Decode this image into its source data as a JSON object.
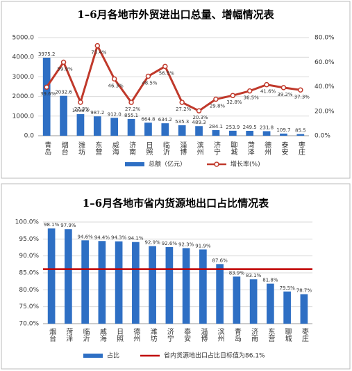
{
  "chart_data": [
    {
      "type": "bar_line",
      "title": "1–6月各地市外贸进出口总量、增幅情况表",
      "categories": [
        "青岛",
        "烟台",
        "潍坊",
        "东营",
        "威海",
        "济南",
        "日照",
        "临沂",
        "淄博",
        "滨州",
        "济宁",
        "聊城",
        "菏泽",
        "德州",
        "泰安",
        "枣庄"
      ],
      "series": [
        {
          "name": "总额（亿元）",
          "color": "#2e6fc4",
          "values": [
            3975.2,
            2032.6,
            1098.4,
            987.2,
            912.0,
            855.1,
            664.8,
            634.2,
            535.3,
            489.3,
            284.1,
            253.9,
            249.5,
            231.8,
            109.7,
            85.5
          ],
          "value_labels": [
            "3975.2",
            "2032.6",
            "1098.4",
            "987.2",
            "912.0",
            "855.1",
            "664.8",
            "634.2",
            "535.3",
            "489.3",
            "284.1",
            "253.9",
            "249.5",
            "231.8",
            "109.7",
            "85.5"
          ]
        },
        {
          "name": "增长率(%)",
          "color": "#c0392b",
          "axis": "y2",
          "values": [
            39.6,
            59.9,
            27.3,
            73.4,
            46.3,
            27.2,
            48.5,
            56.5,
            27.2,
            20.3,
            29.8,
            32.8,
            36.5,
            41.6,
            39.2,
            37.3
          ],
          "value_labels": [
            "39.6%",
            "59.9%",
            "27.3%",
            "73.4%",
            "46.3%",
            "27.2%",
            "48.5%",
            "56.5%",
            "27.2%",
            "20.3%",
            "29.8%",
            "32.8%",
            "36.5%",
            "41.6%",
            "39.2%",
            "37.3%"
          ]
        }
      ],
      "ylim": [
        0,
        5000
      ],
      "yticks": [
        {
          "value": 0,
          "label": "0.0"
        },
        {
          "value": 1000,
          "label": "1000.0"
        },
        {
          "value": 2000,
          "label": "2000.0"
        },
        {
          "value": 3000,
          "label": "3000.0"
        },
        {
          "value": 4000,
          "label": "4000.0"
        },
        {
          "value": 5000,
          "label": "5000.0"
        }
      ],
      "y2lim": [
        0,
        80
      ],
      "y2ticks": [
        {
          "value": 0,
          "label": "0.0%"
        },
        {
          "value": 20,
          "label": "20.0%"
        },
        {
          "value": 40,
          "label": "40.0%"
        },
        {
          "value": 60,
          "label": "60.0%"
        },
        {
          "value": 80,
          "label": "80.0%"
        }
      ],
      "grid": true
    },
    {
      "type": "bar",
      "title": "1–6月各地市省内货源地出口占比情况表",
      "categories": [
        "烟台",
        "菏泽",
        "临沂",
        "威海",
        "日照",
        "德州",
        "潍坊",
        "济宁",
        "泰安",
        "淄博",
        "滨州",
        "青岛",
        "济南",
        "东营",
        "聊城",
        "枣庄"
      ],
      "series": [
        {
          "name": "占比",
          "color": "#2e6fc4",
          "values": [
            98.1,
            97.9,
            94.6,
            94.4,
            94.3,
            94.1,
            92.9,
            92.6,
            92.3,
            91.9,
            87.6,
            83.9,
            83.1,
            81.8,
            79.5,
            78.7
          ],
          "value_labels": [
            "98.1%",
            "97.9%",
            "94.6%",
            "94.4%",
            "94.3%",
            "94.1%",
            "92.9%",
            "92.6%",
            "92.3%",
            "91.9%",
            "87.6%",
            "83.9%",
            "83.1%",
            "81.8%",
            "79.5%",
            "78.7%"
          ]
        }
      ],
      "reference": {
        "name": "省内货源地出口占比目标值为86.1%",
        "value": 86.1,
        "color": "#c00000"
      },
      "ylim": [
        70,
        100
      ],
      "yticks": [
        {
          "value": 70,
          "label": "70.0%"
        },
        {
          "value": 75,
          "label": "75.0%"
        },
        {
          "value": 80,
          "label": "80.0%"
        },
        {
          "value": 85,
          "label": "85.0%"
        },
        {
          "value": 90,
          "label": "90.0%"
        },
        {
          "value": 95,
          "label": "95.0%"
        },
        {
          "value": 100,
          "label": "100.0%"
        }
      ],
      "grid": true
    }
  ]
}
